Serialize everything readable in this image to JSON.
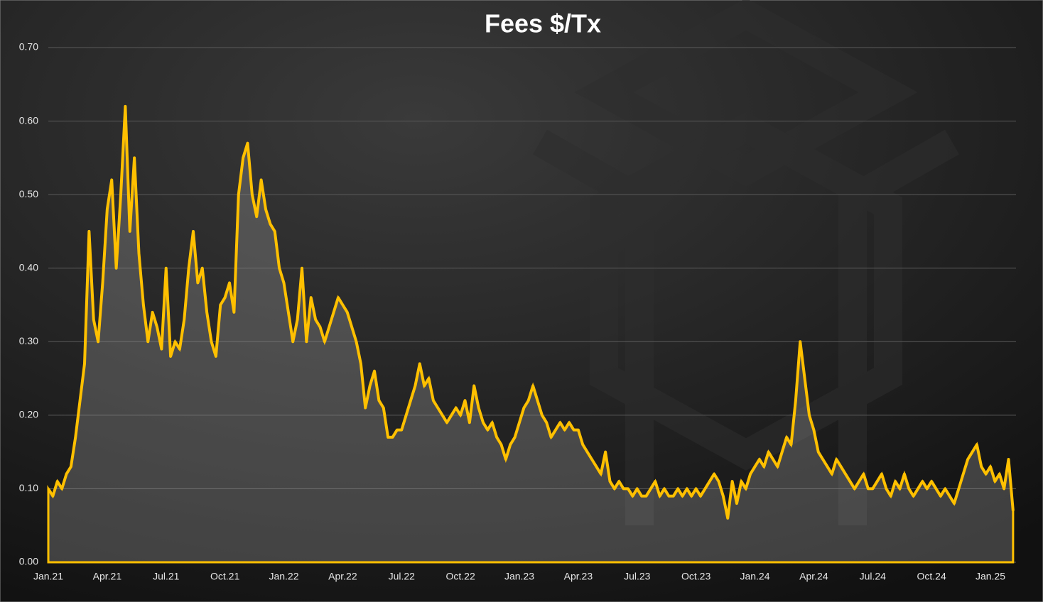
{
  "chart_data": {
    "type": "area",
    "title": "Fees $/Tx",
    "categories": [
      "Jan.21",
      null,
      null,
      null,
      null,
      null,
      null,
      null,
      null,
      null,
      null,
      null,
      null,
      "Apr.21",
      null,
      null,
      null,
      null,
      null,
      null,
      null,
      null,
      null,
      null,
      null,
      null,
      "Jul.21",
      null,
      null,
      null,
      null,
      null,
      null,
      null,
      null,
      null,
      null,
      null,
      null,
      "Oct.21",
      null,
      null,
      null,
      null,
      null,
      null,
      null,
      null,
      null,
      null,
      null,
      null,
      "Jan.22",
      null,
      null,
      null,
      null,
      null,
      null,
      null,
      null,
      null,
      null,
      null,
      null,
      "Apr.22",
      null,
      null,
      null,
      null,
      null,
      null,
      null,
      null,
      null,
      null,
      null,
      null,
      "Jul.22",
      null,
      null,
      null,
      null,
      null,
      null,
      null,
      null,
      null,
      null,
      null,
      null,
      "Oct.22",
      null,
      null,
      null,
      null,
      null,
      null,
      null,
      null,
      null,
      null,
      null,
      null,
      "Jan.23",
      null,
      null,
      null,
      null,
      null,
      null,
      null,
      null,
      null,
      null,
      null,
      null,
      "Apr.23",
      null,
      null,
      null,
      null,
      null,
      null,
      null,
      null,
      null,
      null,
      null,
      null,
      "Jul.23",
      null,
      null,
      null,
      null,
      null,
      null,
      null,
      null,
      null,
      null,
      null,
      null,
      "Oct.23",
      null,
      null,
      null,
      null,
      null,
      null,
      null,
      null,
      null,
      null,
      null,
      null,
      "Jan.24",
      null,
      null,
      null,
      null,
      null,
      null,
      null,
      null,
      null,
      null,
      null,
      null,
      "Apr.24",
      null,
      null,
      null,
      null,
      null,
      null,
      null,
      null,
      null,
      null,
      null,
      null,
      "Jul.24",
      null,
      null,
      null,
      null,
      null,
      null,
      null,
      null,
      null,
      null,
      null,
      null,
      "Oct.24",
      null,
      null,
      null,
      null,
      null,
      null,
      null,
      null,
      null,
      null,
      null,
      null,
      "Jan.25",
      null,
      null,
      null,
      null,
      null
    ],
    "values": [
      0.1,
      0.09,
      0.11,
      0.1,
      0.12,
      0.13,
      0.17,
      0.22,
      0.27,
      0.45,
      0.33,
      0.3,
      0.38,
      0.48,
      0.52,
      0.4,
      0.5,
      0.62,
      0.45,
      0.55,
      0.42,
      0.35,
      0.3,
      0.34,
      0.32,
      0.29,
      0.4,
      0.28,
      0.3,
      0.29,
      0.33,
      0.4,
      0.45,
      0.38,
      0.4,
      0.34,
      0.3,
      0.28,
      0.35,
      0.36,
      0.38,
      0.34,
      0.5,
      0.55,
      0.57,
      0.5,
      0.47,
      0.52,
      0.48,
      0.46,
      0.45,
      0.4,
      0.38,
      0.34,
      0.3,
      0.33,
      0.4,
      0.3,
      0.36,
      0.33,
      0.32,
      0.3,
      0.32,
      0.34,
      0.36,
      0.35,
      0.34,
      0.32,
      0.3,
      0.27,
      0.21,
      0.24,
      0.26,
      0.22,
      0.21,
      0.17,
      0.17,
      0.18,
      0.18,
      0.2,
      0.22,
      0.24,
      0.27,
      0.24,
      0.25,
      0.22,
      0.21,
      0.2,
      0.19,
      0.2,
      0.21,
      0.2,
      0.22,
      0.19,
      0.24,
      0.21,
      0.19,
      0.18,
      0.19,
      0.17,
      0.16,
      0.14,
      0.16,
      0.17,
      0.19,
      0.21,
      0.22,
      0.24,
      0.22,
      0.2,
      0.19,
      0.17,
      0.18,
      0.19,
      0.18,
      0.19,
      0.18,
      0.18,
      0.16,
      0.15,
      0.14,
      0.13,
      0.12,
      0.15,
      0.11,
      0.1,
      0.11,
      0.1,
      0.1,
      0.09,
      0.1,
      0.09,
      0.09,
      0.1,
      0.11,
      0.09,
      0.1,
      0.09,
      0.09,
      0.1,
      0.09,
      0.1,
      0.09,
      0.1,
      0.09,
      0.1,
      0.11,
      0.12,
      0.11,
      0.09,
      0.06,
      0.11,
      0.08,
      0.11,
      0.1,
      0.12,
      0.13,
      0.14,
      0.13,
      0.15,
      0.14,
      0.13,
      0.15,
      0.17,
      0.16,
      0.22,
      0.3,
      0.25,
      0.2,
      0.18,
      0.15,
      0.14,
      0.13,
      0.12,
      0.14,
      0.13,
      0.12,
      0.11,
      0.1,
      0.11,
      0.12,
      0.1,
      0.1,
      0.11,
      0.12,
      0.1,
      0.09,
      0.11,
      0.1,
      0.12,
      0.1,
      0.09,
      0.1,
      0.11,
      0.1,
      0.11,
      0.1,
      0.09,
      0.1,
      0.09,
      0.08,
      0.1,
      0.12,
      0.14,
      0.15,
      0.16,
      0.13,
      0.12,
      0.13,
      0.11,
      0.12,
      0.1,
      0.14,
      0.07
    ],
    "color": "#ffc000",
    "ylim": [
      0,
      0.7
    ],
    "yticks": [
      {
        "value": 0,
        "label": "0.00"
      },
      {
        "value": 0.1,
        "label": "0.10"
      },
      {
        "value": 0.2,
        "label": "0.20"
      },
      {
        "value": 0.3,
        "label": "0.30"
      },
      {
        "value": 0.4,
        "label": "0.40"
      },
      {
        "value": 0.5,
        "label": "0.50"
      },
      {
        "value": 0.6,
        "label": "0.60"
      },
      {
        "value": 0.7,
        "label": "0.70"
      }
    ],
    "grid": true
  }
}
